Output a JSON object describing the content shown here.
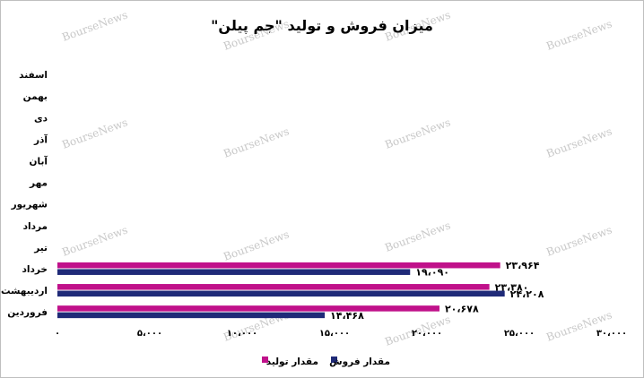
{
  "chart_data": {
    "type": "bar",
    "orientation": "horizontal",
    "title": "\"میزان فروش و تولید \"جم پیلن",
    "categories": [
      "فروردین",
      "اردیبهشت",
      "خرداد",
      "تیر",
      "مرداد",
      "شهریور",
      "مهر",
      "آبان",
      "آذر",
      "دی",
      "بهمن",
      "اسفند"
    ],
    "series": [
      {
        "name": "مقدار تولید",
        "color": "#c0118a",
        "values": [
          20678,
          23380,
          23964,
          null,
          null,
          null,
          null,
          null,
          null,
          null,
          null,
          null
        ],
        "labels": [
          "۲۰،۶۷۸",
          "۲۳،۳۸۰",
          "۲۳،۹۶۴",
          "",
          "",
          "",
          "",
          "",
          "",
          "",
          "",
          ""
        ]
      },
      {
        "name": "مقدار فروش",
        "color": "#1f2a78",
        "values": [
          14468,
          24208,
          19090,
          null,
          null,
          null,
          null,
          null,
          null,
          null,
          null,
          null
        ],
        "labels": [
          "۱۴،۴۶۸",
          "۲۴،۲۰۸",
          "۱۹،۰۹۰",
          "",
          "",
          "",
          "",
          "",
          "",
          "",
          "",
          ""
        ]
      }
    ],
    "xlim": [
      0,
      30000
    ],
    "xticks": [
      0,
      5000,
      10000,
      15000,
      20000,
      25000,
      30000
    ],
    "xtick_labels": [
      "۰",
      "۵،۰۰۰",
      "۱۰،۰۰۰",
      "۱۵،۰۰۰",
      "۲۰،۰۰۰",
      "۲۵،۰۰۰",
      "۳۰،۰۰۰"
    ],
    "grid": false,
    "legend_position": "bottom",
    "watermark": "BourseNews"
  }
}
